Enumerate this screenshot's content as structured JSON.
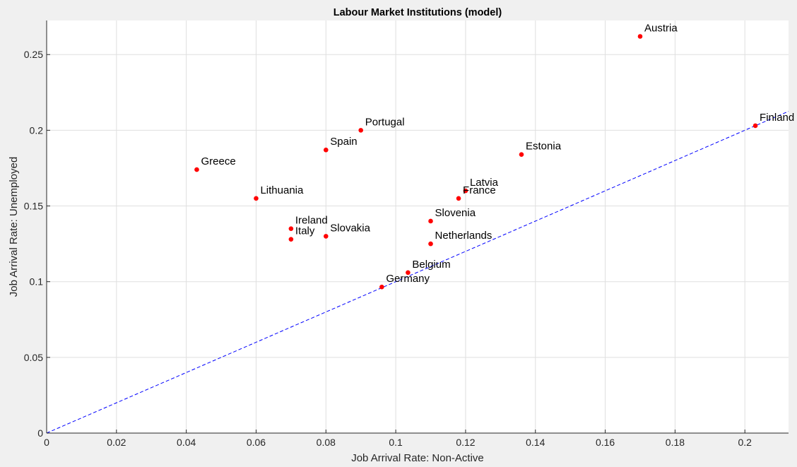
{
  "chart_data": {
    "type": "scatter",
    "title": "Labour Market Institutions (model)",
    "xlabel": "Job Arrival Rate: Non-Active",
    "ylabel": "Job Arrival Rate: Unemployed",
    "xlim": [
      0,
      0.2125
    ],
    "ylim": [
      0,
      0.2725
    ],
    "xticks": [
      0,
      0.02,
      0.04,
      0.06,
      0.08,
      0.1,
      0.12,
      0.14,
      0.16,
      0.18,
      0.2
    ],
    "xtick_labels": [
      "0",
      "0.02",
      "0.04",
      "0.06",
      "0.08",
      "0.1",
      "0.12",
      "0.14",
      "0.16",
      "0.18",
      "0.2"
    ],
    "yticks": [
      0,
      0.05,
      0.1,
      0.15,
      0.2,
      0.25
    ],
    "ytick_labels": [
      "0",
      "0.05",
      "0.1",
      "0.15",
      "0.2",
      "0.25"
    ],
    "grid": true,
    "colors": {
      "points": "#ff0000",
      "reference_line": "#0000ff",
      "plot_bg": "#ffffff",
      "figure_bg": "#f0f0f0",
      "grid": "#dfdfdf"
    },
    "reference_line": {
      "style": "dashed",
      "x": [
        0,
        0.2125
      ],
      "y": [
        0,
        0.2125
      ]
    },
    "points": [
      {
        "label": "Austria",
        "x": 0.17,
        "y": 0.262
      },
      {
        "label": "Finland",
        "x": 0.203,
        "y": 0.203
      },
      {
        "label": "Portugal",
        "x": 0.09,
        "y": 0.2
      },
      {
        "label": "Spain",
        "x": 0.08,
        "y": 0.187
      },
      {
        "label": "Estonia",
        "x": 0.136,
        "y": 0.184
      },
      {
        "label": "Greece",
        "x": 0.043,
        "y": 0.174
      },
      {
        "label": "Latvia",
        "x": 0.12,
        "y": 0.16
      },
      {
        "label": "France",
        "x": 0.118,
        "y": 0.155
      },
      {
        "label": "Lithuania",
        "x": 0.06,
        "y": 0.155
      },
      {
        "label": "Slovenia",
        "x": 0.11,
        "y": 0.14
      },
      {
        "label": "Ireland",
        "x": 0.07,
        "y": 0.135
      },
      {
        "label": "Slovakia",
        "x": 0.08,
        "y": 0.13
      },
      {
        "label": "Italy",
        "x": 0.07,
        "y": 0.128
      },
      {
        "label": "Netherlands",
        "x": 0.11,
        "y": 0.125
      },
      {
        "label": "Belgium",
        "x": 0.1035,
        "y": 0.106
      },
      {
        "label": "Germany",
        "x": 0.096,
        "y": 0.0965
      }
    ]
  }
}
